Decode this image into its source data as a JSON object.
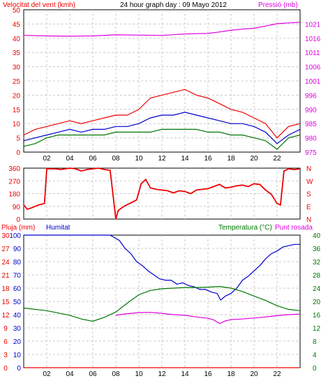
{
  "colors": {
    "red": "#ee0000",
    "green": "#007700",
    "blue": "#0000cc",
    "magenta": "#dd00dd",
    "grid": "#c8c8c8",
    "frame": "#000000",
    "background": "#ffffff"
  },
  "chart_data": [
    {
      "type": "line",
      "title": "24 hour graph day : 09 Mayo 2012",
      "left_axis_label": "Velocitat del vent (kmh)",
      "right_axis_label": "Pressió (mb)",
      "x_ticks": [
        "02",
        "04",
        "06",
        "08",
        "10",
        "12",
        "14",
        "16",
        "18",
        "20",
        "22"
      ],
      "xlim": [
        0,
        24
      ],
      "ylim_left": [
        0,
        50
      ],
      "ylim_right": [
        975,
        1025
      ],
      "y_ticks_left": [
        "0",
        "5",
        "10",
        "15",
        "20",
        "25",
        "30",
        "35",
        "40",
        "45",
        "50"
      ],
      "y_ticks_right": [
        "975",
        "980",
        "985",
        "990",
        "996",
        "1001",
        "1006",
        "1011",
        "1016",
        "1021"
      ],
      "grid": true,
      "series": [
        {
          "axis": "right",
          "color": "#dd00dd",
          "x": [
            0,
            2,
            4,
            6,
            8,
            10,
            12,
            14,
            16,
            17,
            18,
            19,
            20,
            21,
            22,
            23,
            24
          ],
          "values": [
            1016.0,
            1015.8,
            1015.7,
            1015.8,
            1016.2,
            1016.1,
            1016.0,
            1016.5,
            1016.7,
            1017.2,
            1017.8,
            1018.2,
            1018.5,
            1019.3,
            1020.1,
            1020.4,
            1020.6
          ]
        },
        {
          "axis": "left",
          "color": "#ee0000",
          "x": [
            0,
            1,
            2,
            3,
            4,
            5,
            6,
            7,
            8,
            9,
            10,
            11,
            12,
            13,
            14,
            15,
            16,
            17,
            18,
            19,
            20,
            21,
            22,
            23,
            24
          ],
          "values": [
            6,
            8,
            9,
            10,
            11,
            10,
            11,
            12,
            13,
            13,
            15,
            19,
            20,
            21,
            22,
            20,
            19,
            17,
            15,
            14,
            12,
            10,
            5,
            9,
            10
          ]
        },
        {
          "axis": "left",
          "color": "#0000cc",
          "x": [
            0,
            1,
            2,
            3,
            4,
            5,
            6,
            7,
            8,
            9,
            10,
            11,
            12,
            13,
            14,
            15,
            16,
            17,
            18,
            19,
            20,
            21,
            22,
            23,
            24
          ],
          "values": [
            4,
            5,
            6,
            7,
            8,
            7,
            8,
            8,
            9,
            9,
            10,
            12,
            13,
            13,
            14,
            13,
            12,
            11,
            10,
            10,
            9,
            7,
            3,
            6,
            8
          ]
        },
        {
          "axis": "left",
          "color": "#007700",
          "x": [
            0,
            1,
            2,
            3,
            4,
            5,
            6,
            7,
            8,
            9,
            10,
            11,
            12,
            13,
            14,
            15,
            16,
            17,
            18,
            19,
            20,
            21,
            22,
            23,
            24
          ],
          "values": [
            2,
            3,
            5,
            6,
            6,
            6,
            6,
            6,
            7,
            7,
            7,
            7,
            8,
            8,
            8,
            8,
            7,
            7,
            6,
            6,
            5,
            4,
            1,
            5,
            6
          ]
        }
      ]
    },
    {
      "type": "line",
      "right_axis_label": "N W S E N",
      "xlim": [
        0,
        24
      ],
      "ylim": [
        0,
        360
      ],
      "y_ticks_left": [
        "0",
        "90",
        "180",
        "270",
        "360"
      ],
      "direction_labels": [
        "N",
        "W",
        "S",
        "E",
        "N"
      ],
      "series": [
        {
          "color": "#ee0000",
          "x": [
            0,
            0.3,
            0.7,
            1.3,
            1.8,
            2.0,
            2.4,
            2.8,
            3.2,
            3.6,
            4.0,
            4.5,
            5.0,
            5.5,
            6.0,
            6.5,
            7.0,
            7.5,
            8.0,
            8.2,
            8.7,
            9.2,
            9.8,
            10.2,
            10.6,
            11.0,
            11.5,
            12.0,
            12.5,
            13.0,
            13.5,
            14.0,
            14.5,
            15.0,
            15.5,
            16.0,
            16.5,
            17.0,
            17.5,
            18.0,
            18.5,
            19.0,
            19.5,
            20.0,
            20.5,
            21.0,
            21.5,
            22.0,
            22.3,
            22.6,
            23.0,
            23.5,
            24.0
          ],
          "values": [
            100,
            70,
            80,
            100,
            110,
            355,
            355,
            355,
            350,
            355,
            360,
            355,
            340,
            350,
            355,
            360,
            350,
            345,
            0,
            60,
            90,
            110,
            135,
            250,
            280,
            220,
            210,
            205,
            200,
            185,
            200,
            195,
            180,
            205,
            210,
            215,
            230,
            245,
            220,
            225,
            235,
            240,
            230,
            250,
            245,
            205,
            175,
            110,
            100,
            340,
            355,
            350,
            355
          ]
        }
      ]
    },
    {
      "type": "line",
      "left_axis_label": "Pluja (mm)",
      "humidity_label": "Humitat",
      "right_axis_label": "Temperatura (°C)",
      "right_axis_label_2": "Punt rosada",
      "x_ticks": [
        "02",
        "04",
        "06",
        "08",
        "10",
        "12",
        "14",
        "16",
        "18",
        "20",
        "22"
      ],
      "xlim": [
        0,
        24
      ],
      "ylim_rain": [
        0,
        30
      ],
      "ylim_humidity": [
        0,
        100
      ],
      "ylim_temp": [
        0,
        40
      ],
      "y_ticks_rain": [
        "0",
        "3",
        "6",
        "9",
        "12",
        "15",
        "18",
        "21",
        "24",
        "27",
        "30"
      ],
      "y_ticks_humidity": [
        "0",
        "10",
        "20",
        "30",
        "40",
        "50",
        "60",
        "70",
        "80",
        "90",
        "100"
      ],
      "y_ticks_temp": [
        "0",
        "4",
        "8",
        "12",
        "16",
        "20",
        "24",
        "28",
        "32",
        "36",
        "40"
      ],
      "series": [
        {
          "name": "Humitat",
          "axis": "humidity",
          "color": "#0000cc",
          "x": [
            0,
            2,
            4,
            6,
            7.5,
            8.3,
            8.8,
            9.3,
            9.8,
            10.3,
            10.8,
            11.3,
            11.8,
            12.3,
            12.8,
            13.3,
            13.8,
            14.3,
            14.8,
            15.3,
            15.8,
            16.3,
            16.8,
            17.1,
            17.5,
            18.0,
            18.5,
            19.0,
            19.5,
            20.0,
            20.5,
            21.0,
            21.5,
            22.0,
            22.5,
            23.0,
            23.5,
            24.0
          ],
          "values": [
            100,
            100,
            100,
            100,
            100,
            96,
            90,
            86,
            80,
            77,
            73,
            70,
            67,
            66,
            66,
            63,
            64,
            62,
            61,
            59,
            59,
            57,
            56,
            51,
            54,
            56,
            60,
            66,
            69,
            73,
            77,
            82,
            86,
            88,
            91,
            92,
            93,
            93
          ]
        },
        {
          "name": "Temperatura",
          "axis": "temp",
          "color": "#007700",
          "x": [
            0,
            2,
            4,
            5,
            6,
            7,
            8,
            9,
            10,
            11,
            12,
            13,
            14,
            15,
            16,
            17,
            18,
            19,
            20,
            21,
            22,
            23,
            24
          ],
          "values": [
            18,
            17.2,
            15.8,
            14.7,
            14.0,
            15.2,
            16.8,
            19.5,
            22.0,
            23.3,
            23.8,
            24.0,
            24.2,
            24.2,
            24.3,
            24.5,
            24.0,
            23.0,
            21.6,
            20.3,
            18.7,
            17.6,
            17.2
          ]
        },
        {
          "name": "Punt rosada",
          "axis": "temp",
          "color": "#dd00dd",
          "x": [
            8,
            9,
            10,
            11,
            12,
            13,
            14,
            15,
            16,
            16.5,
            17,
            17.5,
            18,
            19,
            20,
            21,
            22,
            23,
            24
          ],
          "values": [
            15.8,
            16.3,
            16.6,
            16.7,
            16.4,
            16.0,
            15.8,
            15.3,
            14.9,
            14.4,
            13.3,
            14.1,
            14.5,
            14.7,
            15.0,
            15.3,
            15.7,
            16.0,
            16.2
          ]
        },
        {
          "name": "Pluja",
          "axis": "rain",
          "color": "#ee0000",
          "x": [
            0,
            24
          ],
          "values": [
            0,
            0
          ]
        }
      ]
    }
  ]
}
